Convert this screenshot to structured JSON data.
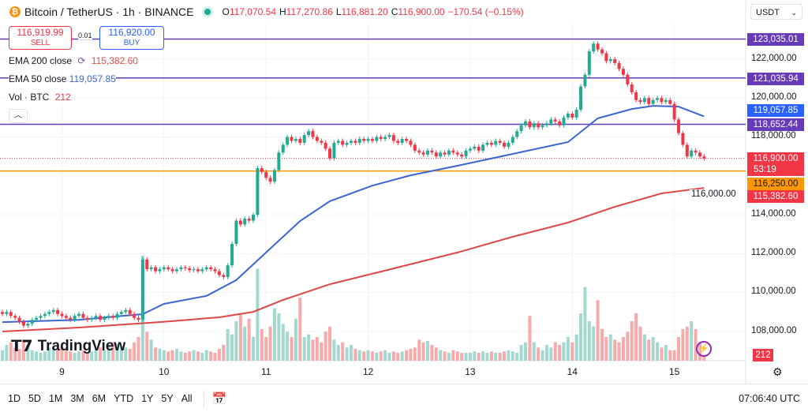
{
  "header": {
    "symbol": "Bitcoin / TetherUS · 1h · BINANCE",
    "coin_icon": "bitcoin-icon",
    "open_label": "O",
    "open": "117,070.54",
    "high_label": "H",
    "high": "117,270.86",
    "low_label": "L",
    "low": "116,881.20",
    "close_label": "C",
    "close": "116,900.00",
    "change": "−170.54 (−0.15%)"
  },
  "trade": {
    "sell_price": "116,919.99",
    "sell_label": "SELL",
    "spread": "0.01",
    "buy_price": "116,920.00",
    "buy_label": "BUY"
  },
  "legend": {
    "ema200_label": "EMA 200 close",
    "ema200_value": "115,382.60",
    "ema50_label": "EMA 50 close",
    "ema50_value": "119,057.85",
    "vol_label": "Vol · BTC",
    "vol_value": "212",
    "collapse_icon": "chevron-up-icon"
  },
  "currency_select": "USDT",
  "colors": {
    "up": "#22ab94",
    "down": "#f23645",
    "ema50": "#3a66d4",
    "ema200": "#e04848",
    "hline": "#673ab7",
    "alert": "#ff9800",
    "vol_up": "#a3d8d0",
    "vol_down": "#f6aaaa"
  },
  "price_badges": [
    {
      "value": "123,035.01",
      "color": "#673ab7"
    },
    {
      "value": "121,035.94",
      "color": "#673ab7"
    },
    {
      "value": "119,057.85",
      "color": "#2962ff"
    },
    {
      "value": "118,652.44",
      "color": "#673ab7"
    },
    {
      "value": "116,900.00",
      "countdown": "53:19",
      "color": "#f23645"
    },
    {
      "value": "116,250.00",
      "color": "#ff9800"
    },
    {
      "value": "115,382.60",
      "color": "#f23645"
    }
  ],
  "volume_badge": "212",
  "bottom": {
    "ranges": [
      "1D",
      "5D",
      "1M",
      "3M",
      "6M",
      "YTD",
      "1Y",
      "5Y",
      "All"
    ],
    "clock": "07:06:40 UTC"
  },
  "logo": "TradingView",
  "chart_data": {
    "type": "candlestick",
    "interval": "1h",
    "start": "8 10:00",
    "y_ticks": [
      "108,000.00",
      "110,000.00",
      "112,000.00",
      "114,000.00",
      "116,000.00",
      "118,000.00",
      "120,000.00",
      "122,000.00"
    ],
    "ylim": [
      107400,
      124000
    ],
    "x_ticks": [
      "9",
      "10",
      "11",
      "12",
      "13",
      "14",
      "15"
    ],
    "close": [
      108900,
      109000,
      108800,
      108700,
      108500,
      108300,
      108400,
      108600,
      108700,
      108800,
      108900,
      109000,
      109100,
      108900,
      108800,
      108700,
      108600,
      108800,
      108900,
      108700,
      108600,
      108700,
      108800,
      108600,
      108700,
      108800,
      108700,
      108900,
      109000,
      109100,
      108900,
      108700,
      108600,
      111700,
      111200,
      111300,
      111100,
      111200,
      111300,
      111200,
      111100,
      111200,
      111300,
      111250,
      111150,
      111200,
      111100,
      111200,
      111300,
      111200,
      111100,
      110900,
      110800,
      111400,
      112500,
      113700,
      113500,
      113800,
      113700,
      114000,
      116400,
      116200,
      115900,
      115700,
      116300,
      117200,
      117600,
      118000,
      117800,
      117900,
      117700,
      118100,
      118300,
      118000,
      117800,
      117700,
      117400,
      116900,
      117700,
      117800,
      117600,
      117700,
      117800,
      117700,
      117900,
      117800,
      117900,
      117800,
      118000,
      117900,
      118000,
      118100,
      117800,
      117700,
      117900,
      117800,
      117600,
      117300,
      117200,
      117100,
      117300,
      117200,
      117000,
      117200,
      117100,
      117300,
      117200,
      117100,
      117000,
      117300,
      117400,
      117500,
      117300,
      117600,
      117700,
      117600,
      117800,
      117700,
      117500,
      117700,
      118000,
      118300,
      118600,
      118800,
      118500,
      118700,
      118500,
      118600,
      118700,
      118900,
      118800,
      118600,
      119000,
      119200,
      119000,
      119400,
      120600,
      121200,
      122400,
      122800,
      122500,
      122300,
      121900,
      122000,
      121800,
      121500,
      121200,
      120700,
      120300,
      119900,
      119800,
      120000,
      119700,
      119900,
      120000,
      119800,
      119900,
      119700,
      118900,
      118200,
      117600,
      117000,
      117300,
      117200,
      117000,
      116900
    ],
    "volume": [
      400,
      600,
      700,
      500,
      450,
      800,
      600,
      400,
      350,
      300,
      350,
      500,
      400,
      450,
      500,
      450,
      350,
      300,
      350,
      400,
      300,
      350,
      450,
      500,
      400,
      600,
      700,
      650,
      550,
      500,
      450,
      700,
      900,
      4000,
      1100,
      800,
      500,
      450,
      400,
      350,
      400,
      450,
      350,
      300,
      350,
      400,
      350,
      300,
      400,
      350,
      300,
      450,
      600,
      1200,
      1000,
      1500,
      1800,
      1300,
      1600,
      900,
      3500,
      1200,
      900,
      1300,
      2000,
      1800,
      1400,
      1100,
      900,
      1600,
      2400,
      900,
      1000,
      800,
      900,
      700,
      1100,
      1300,
      800,
      600,
      700,
      500,
      600,
      450,
      400,
      350,
      400,
      350,
      300,
      350,
      400,
      300,
      350,
      300,
      350,
      400,
      450,
      500,
      800,
      700,
      750,
      600,
      500,
      400,
      350,
      300,
      400,
      350,
      300,
      300,
      300,
      350,
      300,
      350,
      300,
      350,
      300,
      300,
      350,
      400,
      350,
      300,
      600,
      700,
      1700,
      700,
      500,
      400,
      600,
      500,
      700,
      600,
      700,
      900,
      700,
      1000,
      1800,
      2800,
      1500,
      1300,
      2300,
      1200,
      900,
      1000,
      800,
      700,
      900,
      1100,
      1500,
      1800,
      1300,
      1000,
      800,
      900,
      700,
      500,
      600,
      400,
      400,
      900,
      1200,
      1300,
      1500,
      1200,
      700,
      212
    ],
    "ema50": [
      [
        "8 10:00",
        108480
      ],
      [
        "9 04:00",
        108600
      ],
      [
        "9 19:00",
        108890
      ],
      [
        "10 00:00",
        109420
      ],
      [
        "10 10:00",
        109830
      ],
      [
        "10 17:00",
        110640
      ],
      [
        "11 00:00",
        112060
      ],
      [
        "11 08:00",
        113680
      ],
      [
        "11 15:00",
        114700
      ],
      [
        "12 01:00",
        115500
      ],
      [
        "12 10:00",
        116030
      ],
      [
        "12 21:00",
        116520
      ],
      [
        "13 10:00",
        117130
      ],
      [
        "13 23:00",
        117740
      ],
      [
        "14 06:00",
        118960
      ],
      [
        "14 14:00",
        119440
      ],
      [
        "14 19:00",
        119600
      ],
      [
        "15 01:00",
        119560
      ],
      [
        "15 07:00",
        119057.85
      ]
    ],
    "ema200": [
      [
        "8 10:00",
        108000
      ],
      [
        "9 04:00",
        108200
      ],
      [
        "9 23:00",
        108480
      ],
      [
        "10 13:00",
        108730
      ],
      [
        "10 21:00",
        109010
      ],
      [
        "11 04:00",
        109620
      ],
      [
        "11 15:00",
        110430
      ],
      [
        "12 06:00",
        111240
      ],
      [
        "12 21:00",
        112060
      ],
      [
        "13 10:00",
        112870
      ],
      [
        "13 23:00",
        113600
      ],
      [
        "14 10:00",
        114410
      ],
      [
        "14 21:00",
        115100
      ],
      [
        "15 07:00",
        115382.6
      ]
    ],
    "hlines": [
      123035.01,
      121035.94,
      118652.44
    ],
    "alert_line": 116250,
    "last_price": 116900
  }
}
